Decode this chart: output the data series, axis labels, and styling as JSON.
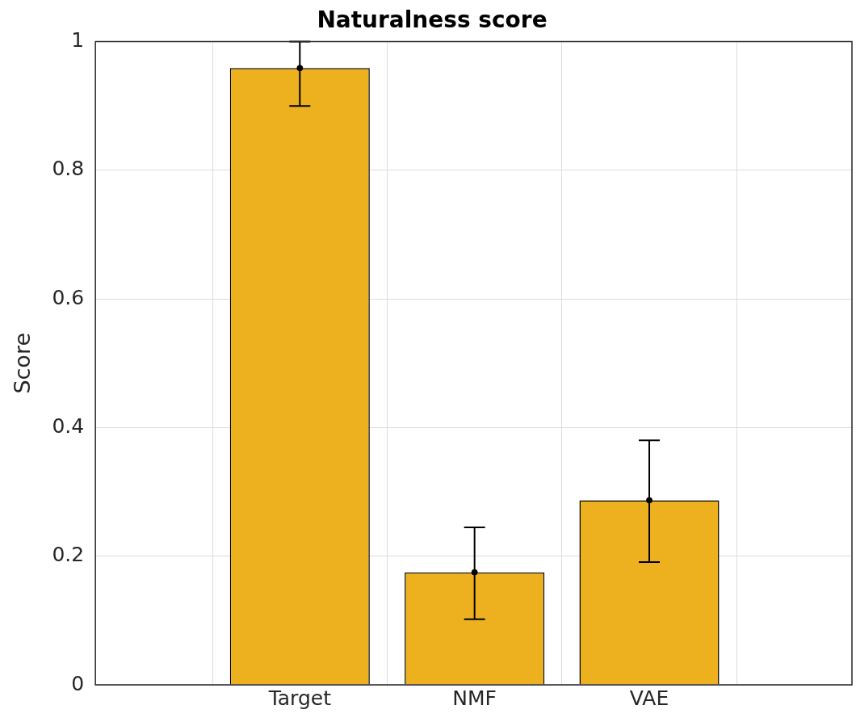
{
  "chart_data": {
    "type": "bar",
    "title": "Naturalness score",
    "ylabel": "Score",
    "categories": [
      "Target",
      "NMF",
      "VAE"
    ],
    "series": [
      {
        "color": "#edb120",
        "values": [
          0.959,
          0.175,
          0.287
        ],
        "errors": [
          [
            0.9,
            1.0
          ],
          [
            0.102,
            0.245
          ],
          [
            0.191,
            0.38
          ]
        ]
      },
      {
        "type": "scatter",
        "color": "#000000",
        "x": [
          "Target",
          "NMF",
          "VAE"
        ],
        "values": [
          0.959,
          0.175,
          0.287
        ],
        "marker": "circle"
      }
    ],
    "ylim": [
      0,
      1
    ],
    "yticks": [
      0,
      0.2,
      0.4,
      0.6,
      0.8,
      1
    ],
    "grid": true,
    "legend": false
  }
}
